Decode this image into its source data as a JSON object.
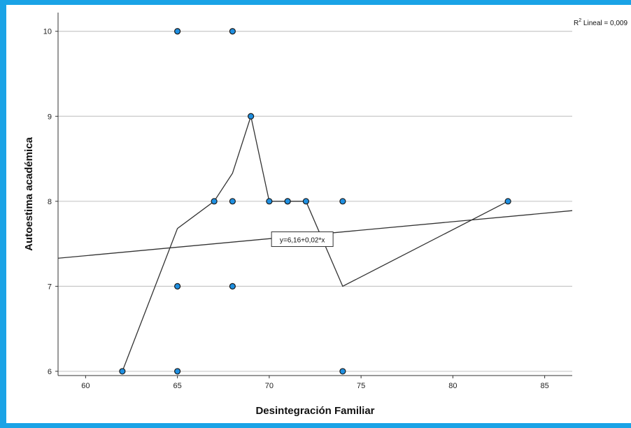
{
  "colors": {
    "frame": "#1aa3e6",
    "point_fill": "#1f8fe0",
    "point_stroke": "#1a1a1a",
    "grid": "#c8c8c8",
    "line": "#333333"
  },
  "chart_data": {
    "type": "scatter",
    "xlabel": "Desintegración Familiar",
    "ylabel": "Autoestima académica",
    "xlim": [
      58.5,
      86.5
    ],
    "ylim": [
      5.95,
      10.22
    ],
    "xticks": [
      60,
      65,
      70,
      75,
      80,
      85
    ],
    "yticks": [
      6,
      7,
      8,
      9,
      10
    ],
    "grid_y": true,
    "points": [
      {
        "x": 62,
        "y": 6
      },
      {
        "x": 65,
        "y": 6
      },
      {
        "x": 74,
        "y": 6
      },
      {
        "x": 65,
        "y": 7
      },
      {
        "x": 68,
        "y": 7
      },
      {
        "x": 67,
        "y": 8
      },
      {
        "x": 68,
        "y": 8
      },
      {
        "x": 70,
        "y": 8
      },
      {
        "x": 71,
        "y": 8
      },
      {
        "x": 71,
        "y": 8
      },
      {
        "x": 72,
        "y": 8
      },
      {
        "x": 74,
        "y": 8
      },
      {
        "x": 83,
        "y": 8
      },
      {
        "x": 69,
        "y": 9
      },
      {
        "x": 65,
        "y": 10
      },
      {
        "x": 68,
        "y": 10
      }
    ],
    "fit_line": {
      "intercept": 6.16,
      "slope": 0.02,
      "label": "y=6,16+0,02*x"
    },
    "loess_line": [
      {
        "x": 62,
        "y": 6
      },
      {
        "x": 65,
        "y": 7.68
      },
      {
        "x": 67,
        "y": 8
      },
      {
        "x": 68,
        "y": 8.33
      },
      {
        "x": 69,
        "y": 9
      },
      {
        "x": 70,
        "y": 8
      },
      {
        "x": 71,
        "y": 8
      },
      {
        "x": 72,
        "y": 8
      },
      {
        "x": 74,
        "y": 7
      },
      {
        "x": 83,
        "y": 8
      }
    ],
    "r2_label": {
      "prefix": "R",
      "sup": "2",
      "text": " Lineal = 0,009"
    }
  }
}
